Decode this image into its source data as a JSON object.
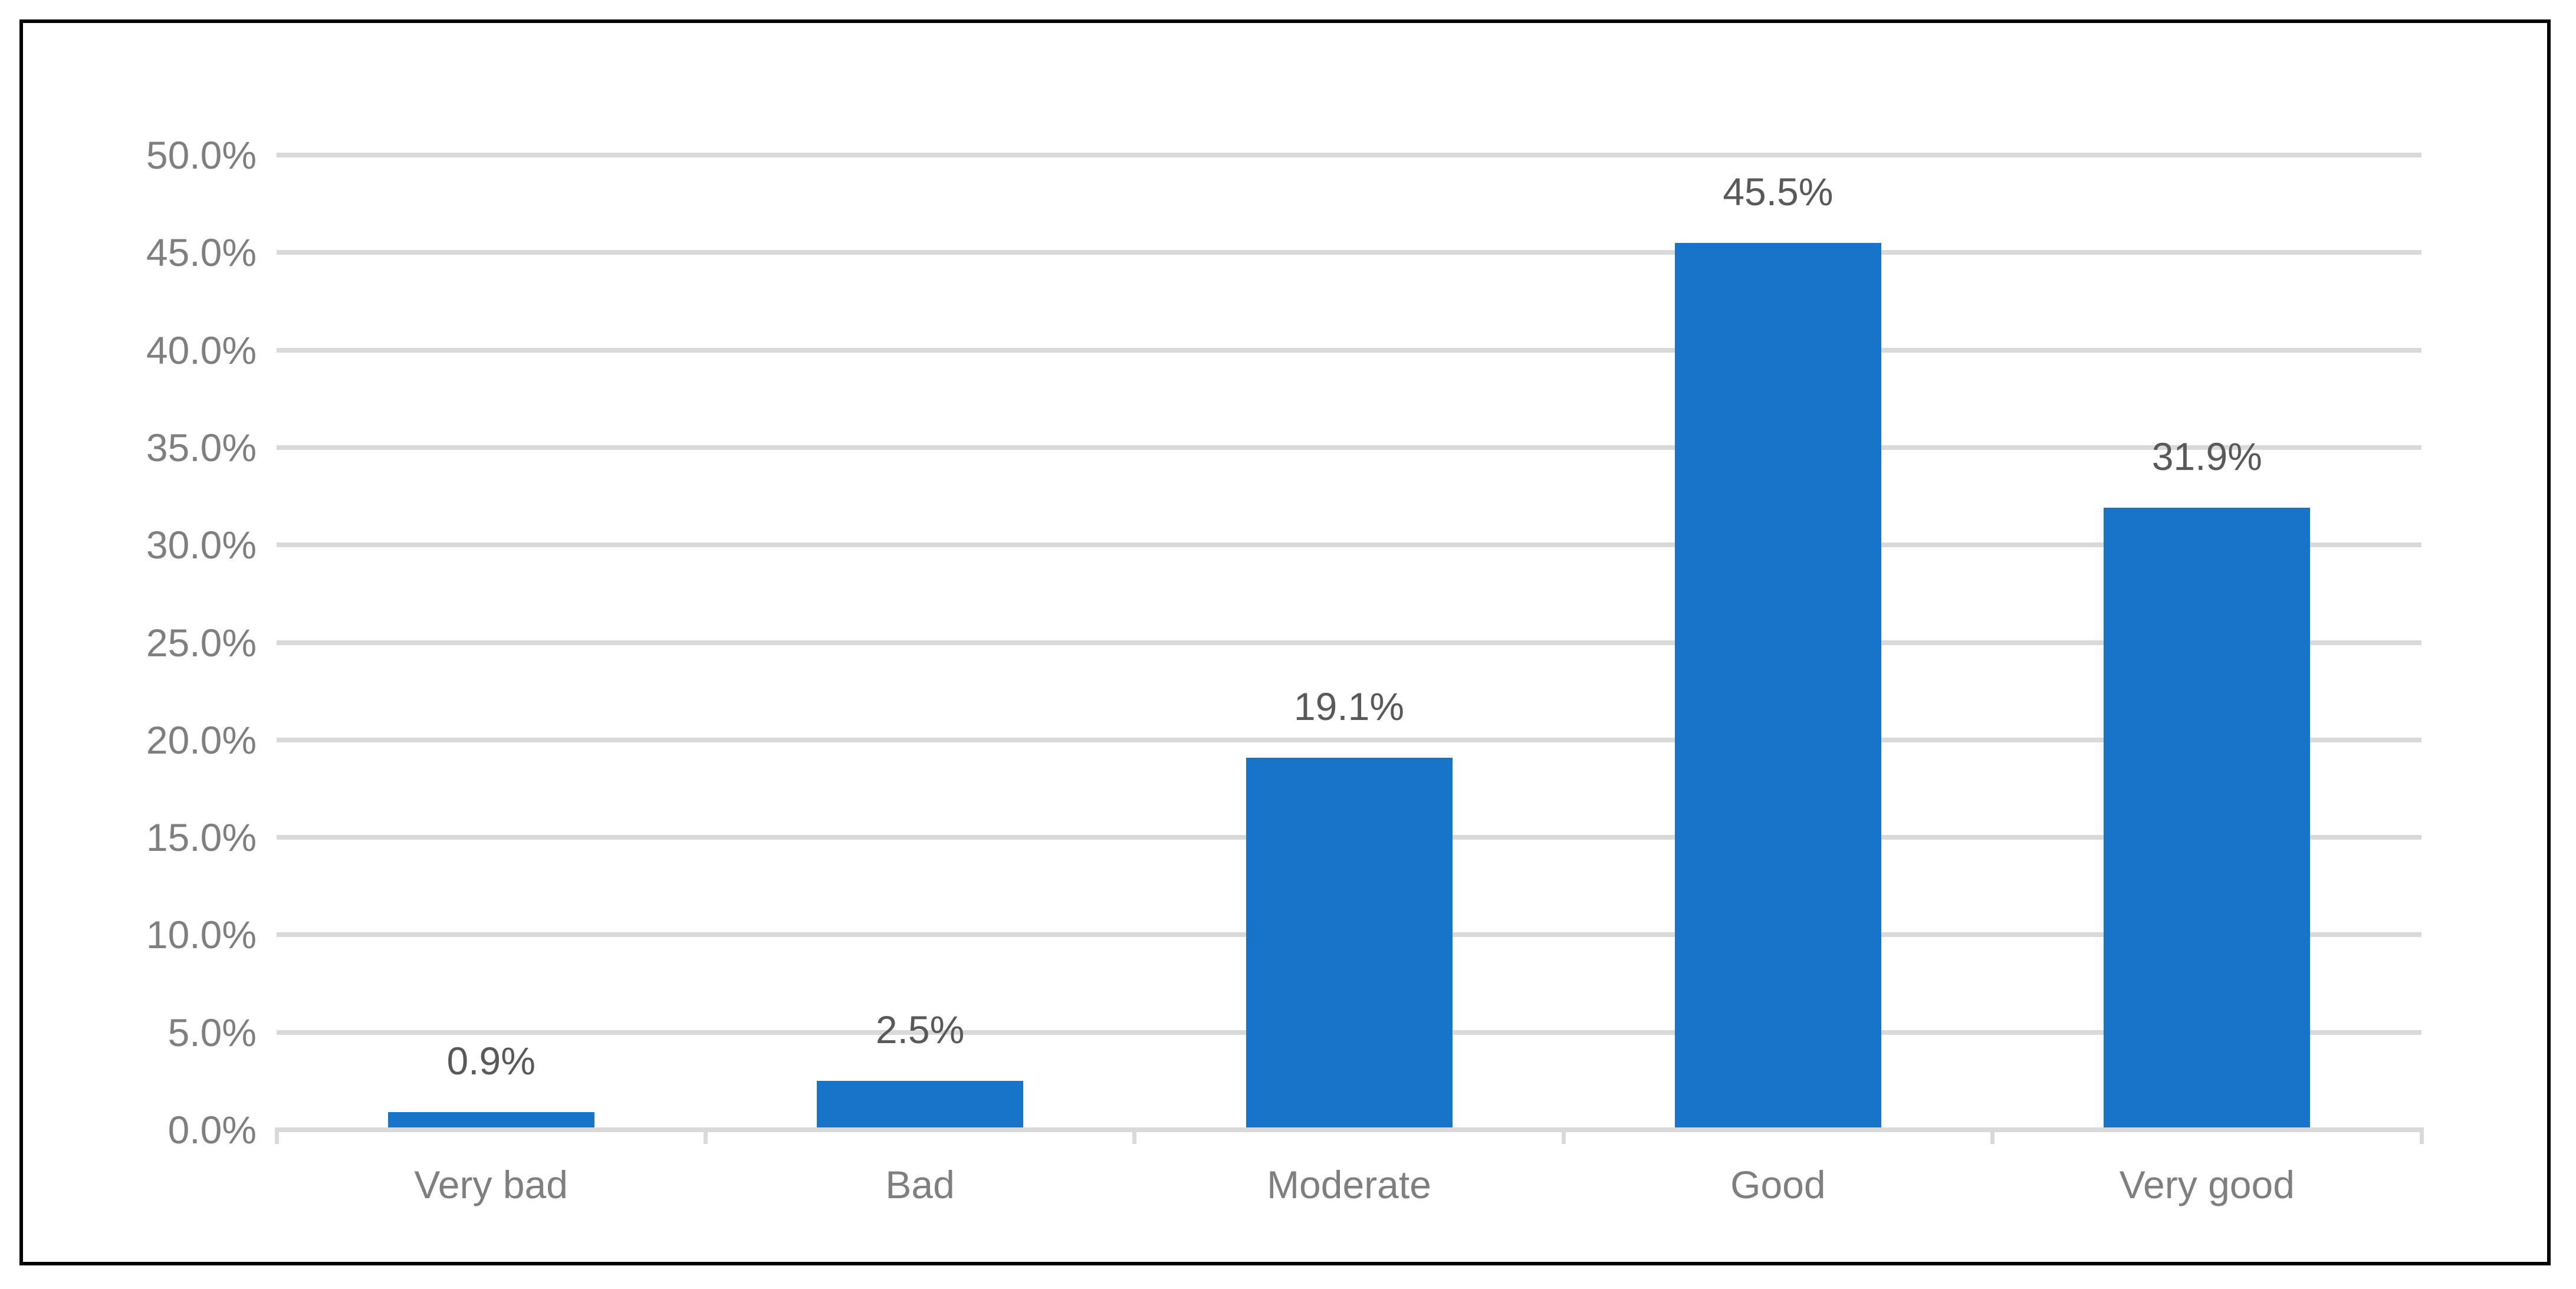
{
  "chart_data": {
    "type": "bar",
    "title": "",
    "xlabel": "",
    "ylabel": "",
    "categories": [
      "Very bad",
      "Bad",
      "Moderate",
      "Good",
      "Very good"
    ],
    "values": [
      0.9,
      2.5,
      19.1,
      45.5,
      31.9
    ],
    "data_labels": [
      "0.9%",
      "2.5%",
      "19.1%",
      "45.5%",
      "31.9%"
    ],
    "ylim": [
      0,
      50
    ],
    "ytick_step": 5,
    "ytick_labels": [
      "0.0%",
      "5.0%",
      "10.0%",
      "15.0%",
      "20.0%",
      "25.0%",
      "30.0%",
      "35.0%",
      "40.0%",
      "45.0%",
      "50.0%"
    ],
    "grid": true,
    "legend": false,
    "colors": {
      "bar": "#1774C8",
      "gridline": "#D9D9D9",
      "axis_line": "#D9D9D9",
      "tick_mark": "#D9D9D9",
      "axis_text": "#7F7F7F",
      "data_label_text": "#595959",
      "frame_border": "#000000",
      "background": "#FFFFFF"
    }
  }
}
